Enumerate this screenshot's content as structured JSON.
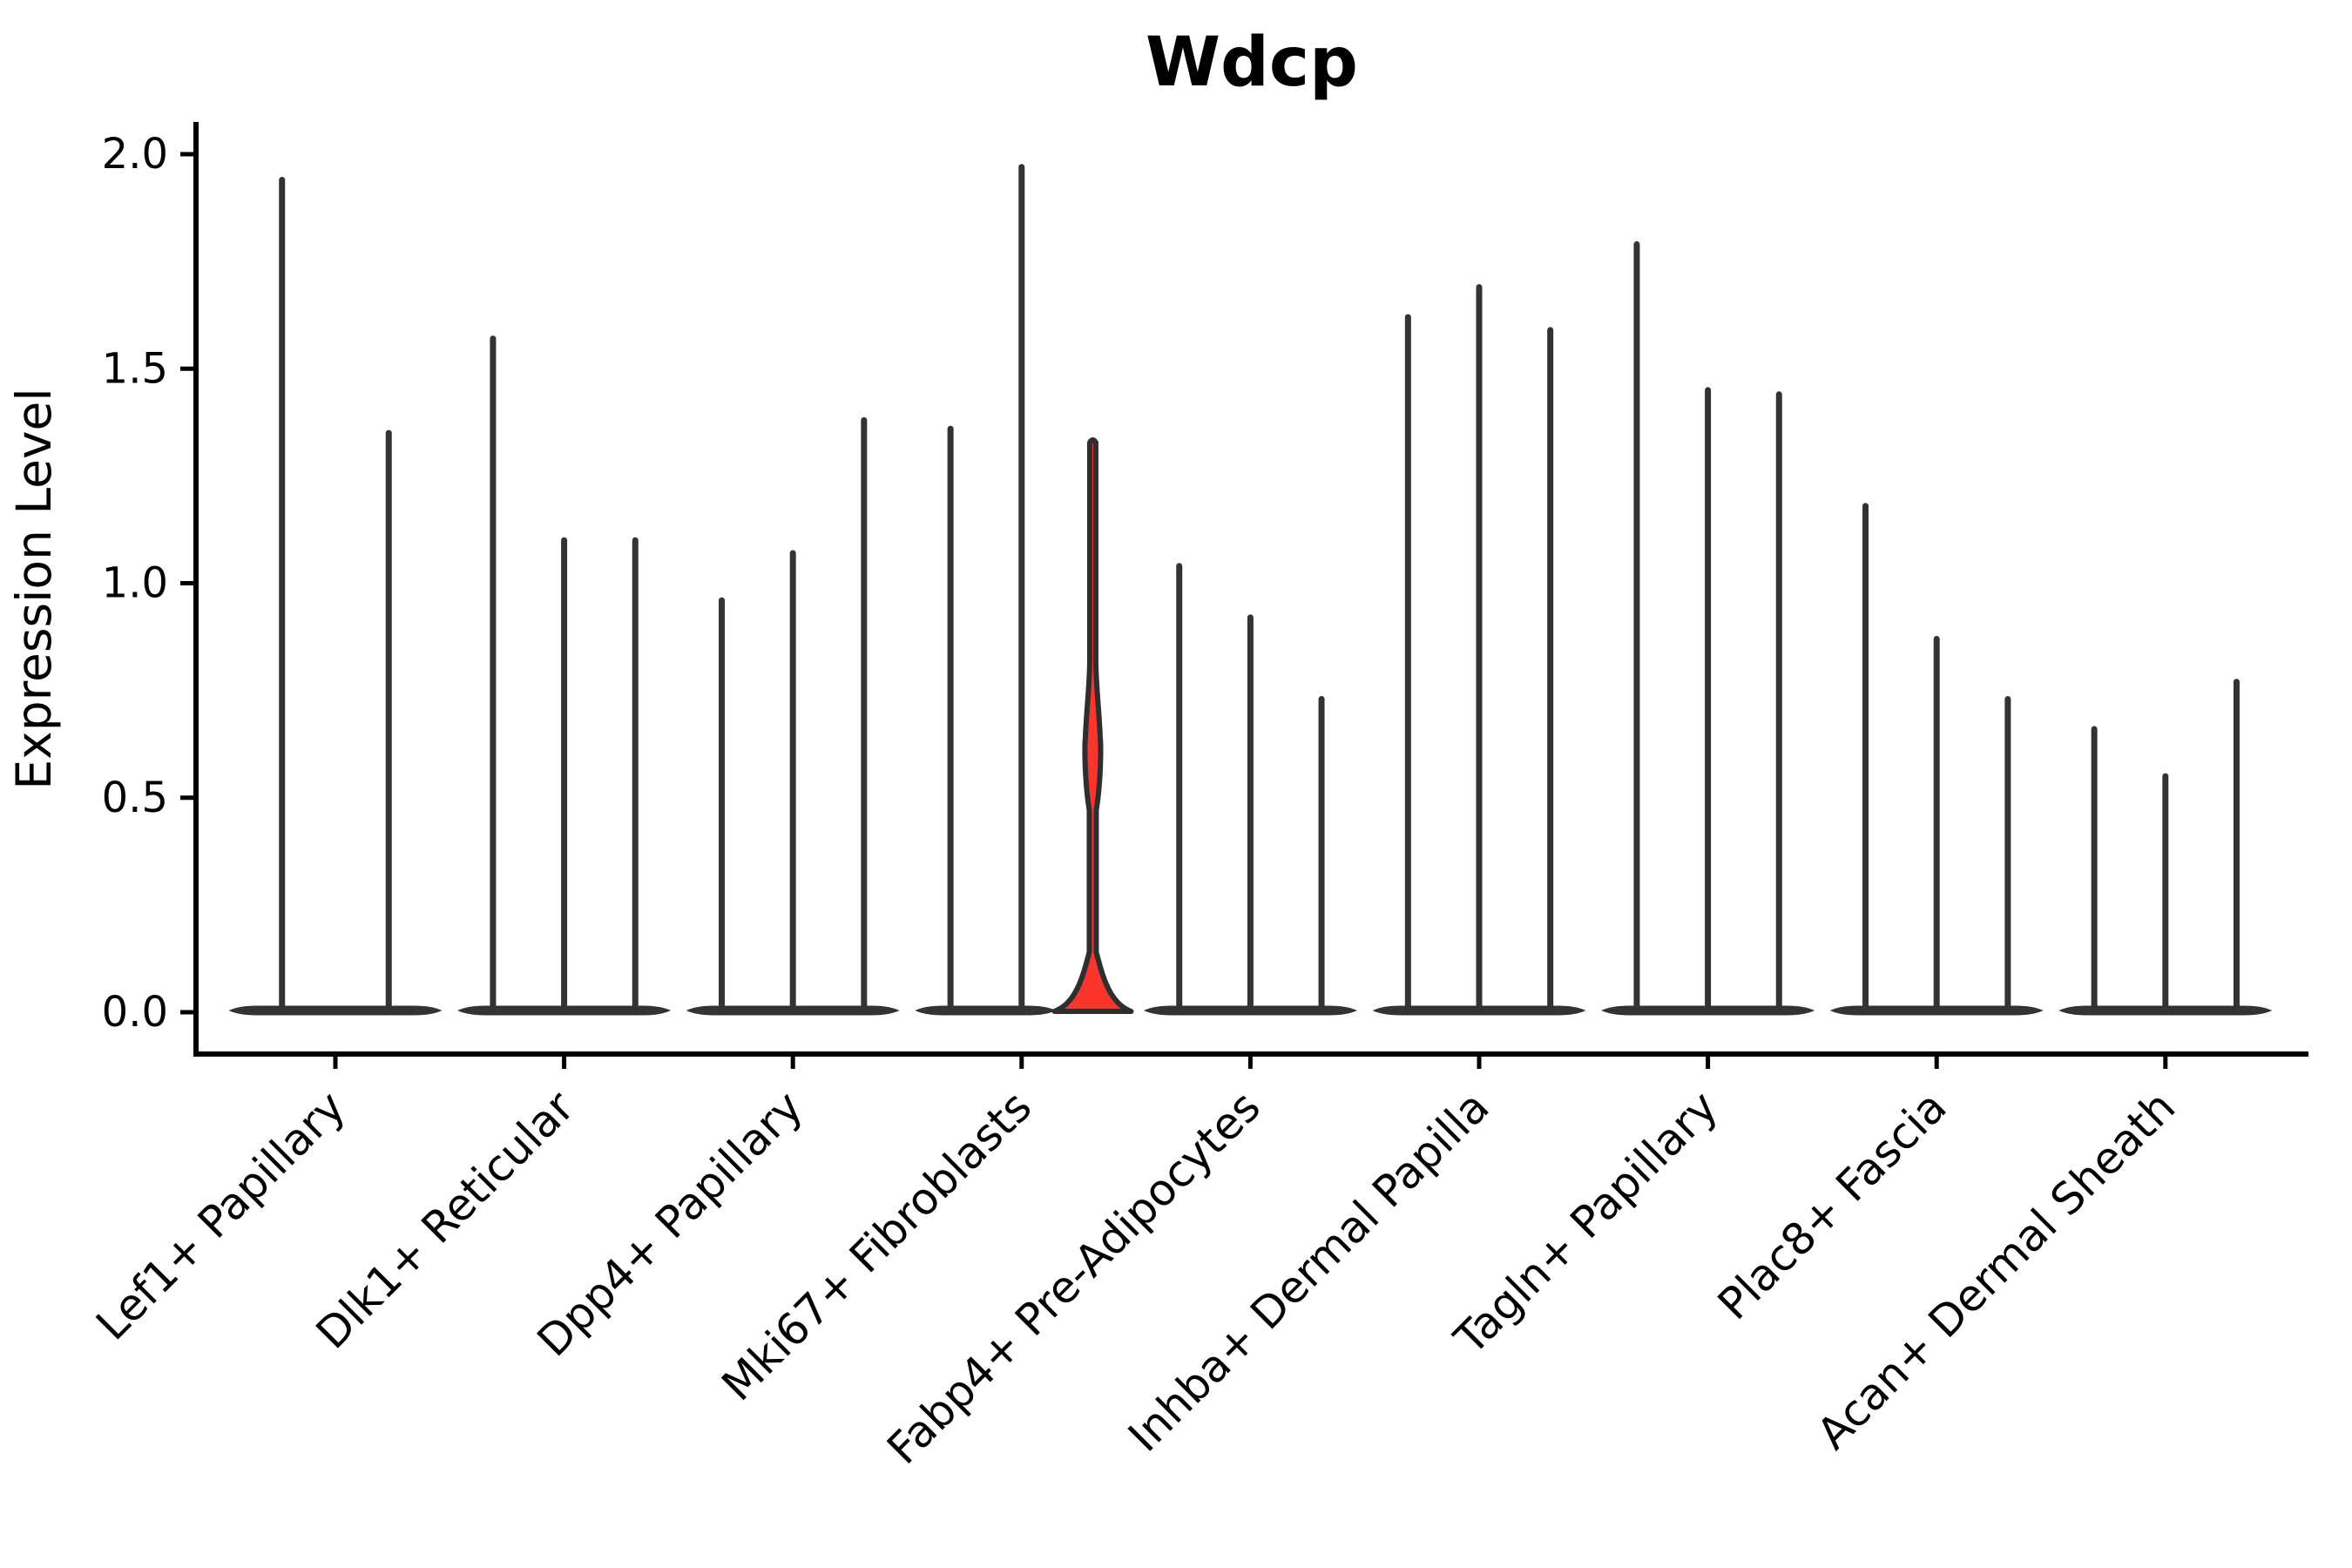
{
  "title": "Wdcp",
  "y_axis": {
    "label": "Expression Level",
    "ticks": [
      "0.0",
      "0.5",
      "1.0",
      "1.5",
      "2.0"
    ],
    "tick_values": [
      0.0,
      0.5,
      1.0,
      1.5,
      2.0
    ]
  },
  "chart_data": {
    "type": "violin",
    "title": "Wdcp",
    "ylabel": "Expression Level",
    "ylim": [
      0,
      2.07
    ],
    "yticks": [
      0.0,
      0.5,
      1.0,
      1.5,
      2.0
    ],
    "grid": false,
    "legend": "none",
    "violin_color": "#333333",
    "highlight_fill": "#fa352b",
    "highlight_outline": "#2e2e2e",
    "categories": [
      "Lef1+ Papillary",
      "Dlk1+ Reticular",
      "Dpp4+ Papillary",
      "Mki67+ Fibroblasts",
      "Fabp4+ Pre-Adipocytes",
      "Inhba+ Dermal Papilla",
      "Tagln+ Papillary",
      "Plac8+ Fascia",
      "Acan+ Dermal Sheath"
    ],
    "groups": [
      {
        "label": "Lef1+ Papillary",
        "violin_max_expression": [
          1.94,
          1.35
        ]
      },
      {
        "label": "Dlk1+ Reticular",
        "violin_max_expression": [
          1.57,
          1.1,
          1.1
        ]
      },
      {
        "label": "Dpp4+ Papillary",
        "violin_max_expression": [
          0.96,
          1.07,
          1.38
        ]
      },
      {
        "label": "Mki67+ Fibroblasts",
        "violin_max_expression": [
          1.36,
          1.97,
          1.34
        ],
        "highlight_index": 2,
        "highlight_violin": {
          "max": 1.34,
          "bulge_center": 0.62,
          "bulge_halfheight": 0.08,
          "base_top": 0.14
        }
      },
      {
        "label": "Fabp4+ Pre-Adipocytes",
        "violin_max_expression": [
          1.04,
          0.92,
          0.73
        ]
      },
      {
        "label": "Inhba+ Dermal Papilla",
        "violin_max_expression": [
          1.62,
          1.69,
          1.59
        ]
      },
      {
        "label": "Tagln+ Papillary",
        "violin_max_expression": [
          1.79,
          1.45,
          1.44
        ]
      },
      {
        "label": "Plac8+ Fascia",
        "violin_max_expression": [
          1.18,
          0.87,
          0.73
        ]
      },
      {
        "label": "Acan+ Dermal Sheath",
        "violin_max_expression": [
          0.66,
          0.55,
          0.77
        ]
      }
    ]
  }
}
